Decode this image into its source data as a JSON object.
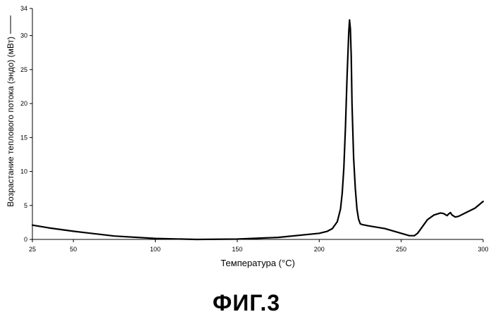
{
  "figure_caption": "ФИГ.3",
  "chart_data": {
    "type": "line",
    "title": "",
    "xlabel": "Температура (°C)",
    "ylabel": "Возрастание теплового потока (эндо) (мВт)",
    "xlim": [
      25,
      300
    ],
    "ylim": [
      0,
      34
    ],
    "x_ticks": [
      25,
      50,
      100,
      150,
      200,
      250,
      300
    ],
    "y_ticks": [
      0,
      5,
      10,
      15,
      20,
      25,
      30,
      34
    ],
    "grid": false,
    "legend": "none",
    "line_color": "#000000",
    "series": [
      {
        "x": [
          25,
          35,
          50,
          75,
          100,
          125,
          150,
          175,
          200,
          205,
          208,
          211,
          213,
          214,
          215,
          216,
          217,
          218,
          218.5,
          219,
          219.5,
          220,
          221,
          222,
          223,
          224,
          225,
          226,
          230,
          240,
          250,
          255,
          258,
          260,
          263,
          266,
          270,
          274,
          276,
          278,
          279,
          280,
          281,
          283,
          285,
          290,
          295,
          300
        ],
        "y": [
          2.1,
          1.7,
          1.2,
          0.5,
          0.15,
          0.0,
          0.05,
          0.3,
          0.9,
          1.2,
          1.6,
          2.6,
          4.5,
          6.8,
          10.5,
          16.5,
          24,
          30.5,
          32.3,
          31.0,
          27,
          20,
          12,
          7.5,
          4.5,
          3.0,
          2.3,
          2.2,
          2.0,
          1.6,
          0.9,
          0.55,
          0.55,
          0.9,
          1.9,
          2.9,
          3.6,
          3.9,
          3.8,
          3.5,
          3.75,
          3.95,
          3.6,
          3.3,
          3.4,
          4.0,
          4.6,
          5.6
        ]
      }
    ]
  }
}
